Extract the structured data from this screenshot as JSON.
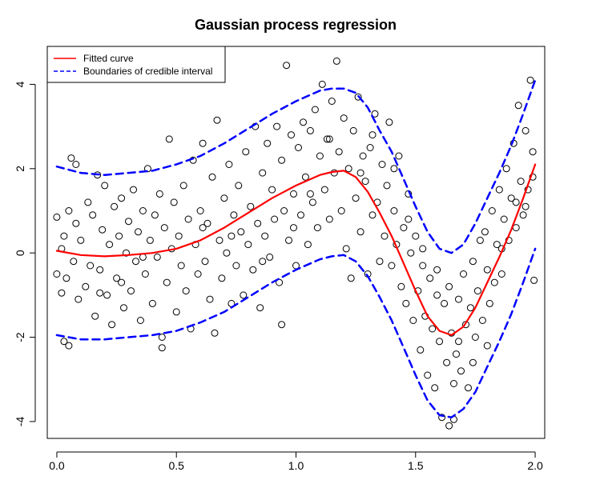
{
  "chart_data": {
    "type": "scatter",
    "title": "Gaussian process regression",
    "xlabel": "",
    "ylabel": "",
    "xlim": [
      -0.04,
      2.04
    ],
    "ylim": [
      -4.4,
      4.9
    ],
    "x_ticks": [
      0.0,
      0.5,
      1.0,
      1.5,
      2.0
    ],
    "x_tick_labels": [
      "0.0",
      "0.5",
      "1.0",
      "1.5",
      "2.0"
    ],
    "y_ticks": [
      -4,
      -2,
      0,
      2,
      4
    ],
    "y_tick_labels": [
      "-4",
      "-2",
      "0",
      "2",
      "4"
    ],
    "grid": false,
    "legend_position": "top-left",
    "legend": [
      {
        "label": "Fitted curve",
        "color": "#ff0000",
        "style": "solid"
      },
      {
        "label": "Boundaries of credible interval",
        "color": "#0000ff",
        "style": "dashed"
      }
    ],
    "series": [
      {
        "kind": "points",
        "marker": "open-circle",
        "color": "#000000",
        "points": [
          [
            0.0,
            0.85
          ],
          [
            0.0,
            -0.5
          ],
          [
            0.02,
            0.1
          ],
          [
            0.02,
            -0.95
          ],
          [
            0.03,
            0.4
          ],
          [
            0.04,
            -0.6
          ],
          [
            0.05,
            1.0
          ],
          [
            0.06,
            2.25
          ],
          [
            0.07,
            -0.2
          ],
          [
            0.08,
            0.7
          ],
          [
            0.08,
            2.1
          ],
          [
            0.09,
            -1.1
          ],
          [
            0.1,
            0.3
          ],
          [
            0.12,
            -0.8
          ],
          [
            0.13,
            1.2
          ],
          [
            0.14,
            -0.3
          ],
          [
            0.15,
            0.9
          ],
          [
            0.16,
            -1.5
          ],
          [
            0.17,
            1.85
          ],
          [
            0.18,
            -0.4
          ],
          [
            0.19,
            0.55
          ],
          [
            0.2,
            1.6
          ],
          [
            0.21,
            -1.0
          ],
          [
            0.22,
            0.2
          ],
          [
            0.23,
            -1.7
          ],
          [
            0.24,
            1.1
          ],
          [
            0.25,
            -0.6
          ],
          [
            0.26,
            0.4
          ],
          [
            0.27,
            1.3
          ],
          [
            0.28,
            -1.3
          ],
          [
            0.29,
            0.0
          ],
          [
            0.3,
            0.75
          ],
          [
            0.31,
            -0.9
          ],
          [
            0.32,
            1.5
          ],
          [
            0.33,
            -0.2
          ],
          [
            0.34,
            0.5
          ],
          [
            0.35,
            -1.6
          ],
          [
            0.36,
            1.0
          ],
          [
            0.37,
            -0.5
          ],
          [
            0.38,
            2.0
          ],
          [
            0.39,
            0.3
          ],
          [
            0.4,
            -1.2
          ],
          [
            0.41,
            0.9
          ],
          [
            0.42,
            -0.1
          ],
          [
            0.43,
            1.4
          ],
          [
            0.44,
            -2.0
          ],
          [
            0.45,
            0.6
          ],
          [
            0.46,
            -0.7
          ],
          [
            0.47,
            2.7
          ],
          [
            0.48,
            0.1
          ],
          [
            0.49,
            1.2
          ],
          [
            0.5,
            -1.4
          ],
          [
            0.51,
            0.4
          ],
          [
            0.52,
            -0.3
          ],
          [
            0.53,
            1.6
          ],
          [
            0.54,
            -0.9
          ],
          [
            0.55,
            0.8
          ],
          [
            0.56,
            -1.8
          ],
          [
            0.57,
            2.2
          ],
          [
            0.58,
            0.2
          ],
          [
            0.59,
            -0.5
          ],
          [
            0.6,
            1.0
          ],
          [
            0.61,
            2.6
          ],
          [
            0.62,
            -0.2
          ],
          [
            0.63,
            0.7
          ],
          [
            0.64,
            -1.1
          ],
          [
            0.65,
            1.8
          ],
          [
            0.66,
            -1.9
          ],
          [
            0.67,
            3.15
          ],
          [
            0.68,
            0.3
          ],
          [
            0.69,
            -0.6
          ],
          [
            0.7,
            1.3
          ],
          [
            0.71,
            0.0
          ],
          [
            0.72,
            2.1
          ],
          [
            0.73,
            -1.2
          ],
          [
            0.74,
            0.9
          ],
          [
            0.75,
            -0.3
          ],
          [
            0.76,
            1.6
          ],
          [
            0.77,
            0.5
          ],
          [
            0.78,
            -1.0
          ],
          [
            0.79,
            2.4
          ],
          [
            0.8,
            0.2
          ],
          [
            0.81,
            1.1
          ],
          [
            0.82,
            -0.4
          ],
          [
            0.83,
            3.0
          ],
          [
            0.84,
            0.7
          ],
          [
            0.85,
            -1.3
          ],
          [
            0.86,
            1.9
          ],
          [
            0.87,
            0.4
          ],
          [
            0.88,
            2.6
          ],
          [
            0.89,
            -0.1
          ],
          [
            0.9,
            1.5
          ],
          [
            0.91,
            0.8
          ],
          [
            0.92,
            3.0
          ],
          [
            0.93,
            -0.7
          ],
          [
            0.94,
            2.2
          ],
          [
            0.95,
            1.0
          ],
          [
            0.96,
            4.45
          ],
          [
            0.97,
            0.3
          ],
          [
            0.98,
            2.8
          ],
          [
            0.99,
            1.4
          ],
          [
            1.0,
            -0.3
          ],
          [
            1.01,
            2.5
          ],
          [
            1.02,
            0.9
          ],
          [
            1.03,
            3.1
          ],
          [
            1.04,
            1.8
          ],
          [
            1.05,
            0.2
          ],
          [
            1.06,
            2.9
          ],
          [
            1.07,
            1.2
          ],
          [
            1.08,
            3.4
          ],
          [
            1.09,
            0.6
          ],
          [
            1.1,
            2.3
          ],
          [
            1.11,
            4.0
          ],
          [
            1.12,
            1.5
          ],
          [
            1.13,
            2.7
          ],
          [
            1.14,
            0.8
          ],
          [
            1.15,
            3.6
          ],
          [
            1.16,
            1.9
          ],
          [
            1.17,
            4.55
          ],
          [
            1.18,
            2.4
          ],
          [
            1.19,
            1.0
          ],
          [
            1.2,
            3.2
          ],
          [
            1.21,
            0.1
          ],
          [
            1.22,
            2.0
          ],
          [
            1.23,
            -0.6
          ],
          [
            1.24,
            2.9
          ],
          [
            1.25,
            1.3
          ],
          [
            1.26,
            3.7
          ],
          [
            1.27,
            0.5
          ],
          [
            1.28,
            2.3
          ],
          [
            1.29,
            1.7
          ],
          [
            1.3,
            -0.5
          ],
          [
            1.31,
            2.5
          ],
          [
            1.32,
            0.9
          ],
          [
            1.33,
            3.3
          ],
          [
            1.34,
            1.2
          ],
          [
            1.35,
            -0.2
          ],
          [
            1.36,
            2.1
          ],
          [
            1.37,
            0.4
          ],
          [
            1.38,
            1.6
          ],
          [
            1.39,
            3.1
          ],
          [
            1.4,
            -0.3
          ],
          [
            1.41,
            1.0
          ],
          [
            1.42,
            0.2
          ],
          [
            1.43,
            2.3
          ],
          [
            1.44,
            -0.8
          ],
          [
            1.45,
            0.6
          ],
          [
            1.46,
            -1.2
          ],
          [
            1.47,
            1.4
          ],
          [
            1.48,
            0.0
          ],
          [
            1.49,
            -1.6
          ],
          [
            1.5,
            0.4
          ],
          [
            1.51,
            -0.9
          ],
          [
            1.52,
            -2.3
          ],
          [
            1.53,
            -0.3
          ],
          [
            1.54,
            -1.5
          ],
          [
            1.55,
            -2.9
          ],
          [
            1.56,
            -0.6
          ],
          [
            1.57,
            -1.8
          ],
          [
            1.58,
            -3.2
          ],
          [
            1.59,
            -0.4
          ],
          [
            1.6,
            -2.1
          ],
          [
            1.61,
            -3.9
          ],
          [
            1.62,
            -1.2
          ],
          [
            1.63,
            -2.6
          ],
          [
            1.64,
            -0.8
          ],
          [
            1.65,
            -1.9
          ],
          [
            1.66,
            -3.1
          ],
          [
            1.67,
            -2.4
          ],
          [
            1.68,
            -1.1
          ],
          [
            1.69,
            -2.8
          ],
          [
            1.7,
            -0.5
          ],
          [
            1.71,
            -1.7
          ],
          [
            1.72,
            -3.2
          ],
          [
            1.73,
            -1.3
          ],
          [
            1.74,
            -0.2
          ],
          [
            1.75,
            -2.0
          ],
          [
            1.76,
            -0.9
          ],
          [
            1.77,
            0.3
          ],
          [
            1.78,
            -1.6
          ],
          [
            1.79,
            0.5
          ],
          [
            1.8,
            -0.4
          ],
          [
            1.81,
            -1.2
          ],
          [
            1.82,
            1.0
          ],
          [
            1.83,
            -0.7
          ],
          [
            1.84,
            0.2
          ],
          [
            1.85,
            1.5
          ],
          [
            1.86,
            -0.5
          ],
          [
            1.87,
            0.8
          ],
          [
            1.88,
            2.0
          ],
          [
            1.89,
            0.3
          ],
          [
            1.9,
            1.3
          ],
          [
            1.91,
            2.6
          ],
          [
            1.92,
            0.6
          ],
          [
            1.93,
            3.5
          ],
          [
            1.94,
            1.7
          ],
          [
            1.95,
            0.9
          ],
          [
            1.96,
            2.9
          ],
          [
            1.97,
            1.5
          ],
          [
            1.98,
            4.1
          ],
          [
            1.99,
            2.4
          ],
          [
            1.995,
            -0.65
          ],
          [
            1.64,
            -4.1
          ],
          [
            1.66,
            -3.95
          ],
          [
            0.94,
            -1.7
          ],
          [
            0.03,
            -2.1
          ],
          [
            0.05,
            -2.2
          ],
          [
            0.44,
            -2.25
          ],
          [
            0.18,
            -0.95
          ],
          [
            0.27,
            -0.7
          ],
          [
            0.36,
            -0.1
          ],
          [
            0.61,
            0.6
          ],
          [
            0.73,
            0.4
          ],
          [
            0.86,
            -0.2
          ],
          [
            0.99,
            0.6
          ],
          [
            1.06,
            1.4
          ],
          [
            1.14,
            2.7
          ],
          [
            1.27,
            1.9
          ],
          [
            1.32,
            2.8
          ],
          [
            1.41,
            2.0
          ],
          [
            1.47,
            0.8
          ],
          [
            1.53,
            0.1
          ],
          [
            1.59,
            -1.0
          ],
          [
            1.68,
            -2.1
          ],
          [
            1.74,
            -2.6
          ],
          [
            1.8,
            -2.2
          ],
          [
            1.86,
            0.1
          ],
          [
            1.92,
            1.2
          ],
          [
            1.96,
            1.1
          ],
          [
            1.99,
            1.8
          ]
        ]
      },
      {
        "name": "Fitted curve",
        "kind": "line",
        "color": "#ff0000",
        "style": "solid",
        "x": [
          0.0,
          0.1,
          0.2,
          0.3,
          0.4,
          0.5,
          0.6,
          0.7,
          0.8,
          0.9,
          1.0,
          1.1,
          1.15,
          1.2,
          1.25,
          1.3,
          1.35,
          1.4,
          1.45,
          1.5,
          1.55,
          1.6,
          1.65,
          1.7,
          1.75,
          1.8,
          1.85,
          1.9,
          1.95,
          2.0
        ],
        "y": [
          0.05,
          -0.05,
          -0.08,
          -0.05,
          0.0,
          0.1,
          0.3,
          0.6,
          0.95,
          1.3,
          1.6,
          1.85,
          1.92,
          1.95,
          1.8,
          1.45,
          0.95,
          0.4,
          -0.25,
          -0.9,
          -1.5,
          -1.85,
          -1.95,
          -1.75,
          -1.3,
          -0.7,
          -0.1,
          0.55,
          1.3,
          2.1
        ]
      },
      {
        "name": "Boundaries of credible interval",
        "kind": "line",
        "color": "#0000ff",
        "style": "dashed",
        "x": [
          0.0,
          0.1,
          0.2,
          0.3,
          0.4,
          0.5,
          0.6,
          0.7,
          0.8,
          0.9,
          1.0,
          1.1,
          1.15,
          1.2,
          1.25,
          1.3,
          1.35,
          1.4,
          1.45,
          1.5,
          1.55,
          1.6,
          1.65,
          1.7,
          1.75,
          1.8,
          1.85,
          1.9,
          1.95,
          2.0
        ],
        "y": [
          2.05,
          1.9,
          1.85,
          1.9,
          1.95,
          2.1,
          2.3,
          2.6,
          2.95,
          3.3,
          3.6,
          3.85,
          3.9,
          3.9,
          3.8,
          3.45,
          2.9,
          2.4,
          1.75,
          1.1,
          0.5,
          0.1,
          0.0,
          0.2,
          0.7,
          1.3,
          1.9,
          2.55,
          3.3,
          4.1
        ]
      },
      {
        "name": "",
        "kind": "line",
        "color": "#0000ff",
        "style": "dashed",
        "x": [
          0.0,
          0.1,
          0.2,
          0.3,
          0.4,
          0.5,
          0.6,
          0.7,
          0.8,
          0.9,
          1.0,
          1.1,
          1.15,
          1.2,
          1.25,
          1.3,
          1.35,
          1.4,
          1.45,
          1.5,
          1.55,
          1.6,
          1.65,
          1.7,
          1.75,
          1.8,
          1.85,
          1.9,
          1.95,
          2.0
        ],
        "y": [
          -1.95,
          -2.05,
          -2.05,
          -2.0,
          -1.95,
          -1.85,
          -1.65,
          -1.4,
          -1.05,
          -0.7,
          -0.4,
          -0.15,
          -0.08,
          -0.05,
          -0.2,
          -0.55,
          -1.05,
          -1.6,
          -2.25,
          -2.9,
          -3.5,
          -3.85,
          -3.9,
          -3.7,
          -3.3,
          -2.7,
          -2.1,
          -1.45,
          -0.7,
          0.1
        ]
      }
    ]
  }
}
